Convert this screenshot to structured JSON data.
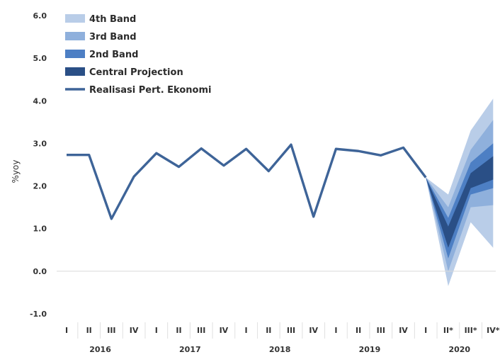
{
  "chart_data": {
    "type": "line",
    "ylabel": "%yoy",
    "ylim": [
      -1.0,
      6.0
    ],
    "yticks": [
      "6.0",
      "5.0",
      "4.0",
      "3.0",
      "2.0",
      "1.0",
      "0.0",
      "-1.0"
    ],
    "quarters": [
      "I",
      "II",
      "III",
      "IV",
      "I",
      "II",
      "III",
      "IV",
      "I",
      "II",
      "III",
      "IV",
      "I",
      "II",
      "III",
      "IV",
      "I",
      "II*",
      "III*",
      "IV*"
    ],
    "years": [
      "2016",
      "2017",
      "2018",
      "2019",
      "2020"
    ],
    "legend": [
      {
        "label": "4th Band",
        "color": "#b9cde8"
      },
      {
        "label": "3rd Band",
        "color": "#8fb0dc"
      },
      {
        "label": "2nd Band",
        "color": "#4d7fc4"
      },
      {
        "label": "Central Projection",
        "color": "#2a4f86"
      },
      {
        "label": "Realisasi Pert. Ekonomi",
        "color": "#3e6498"
      }
    ],
    "actual": {
      "name": "Realisasi Pert. Ekonomi",
      "values": [
        2.73,
        2.73,
        1.23,
        2.22,
        2.77,
        2.45,
        2.88,
        2.48,
        2.87,
        2.35,
        2.97,
        1.28,
        2.87,
        2.82,
        2.72,
        2.9,
        2.2
      ]
    },
    "projection": {
      "start_value": 2.2,
      "central": {
        "low": [
          0.55,
          1.95,
          2.15
        ],
        "high": [
          1.05,
          2.3,
          2.7
        ]
      },
      "band2": {
        "low": [
          0.3,
          1.8,
          1.95
        ],
        "high": [
          1.25,
          2.55,
          3.0
        ]
      },
      "band3": {
        "low": [
          0.0,
          1.5,
          1.55
        ],
        "high": [
          1.5,
          2.85,
          3.55
        ]
      },
      "band4": {
        "low": [
          -0.35,
          1.15,
          0.55
        ],
        "high": [
          1.8,
          3.3,
          4.05
        ]
      }
    }
  }
}
